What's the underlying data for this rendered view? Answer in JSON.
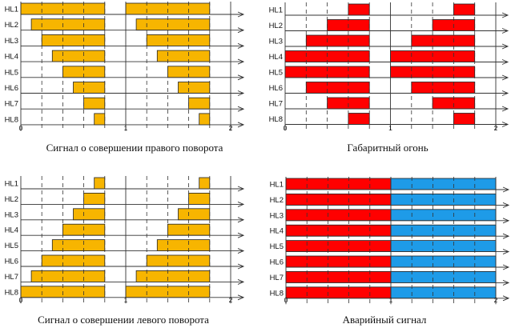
{
  "channel_labels": [
    "HL1",
    "HL2",
    "HL3",
    "HL4",
    "HL5",
    "HL6",
    "HL7",
    "HL8"
  ],
  "tick_labels": [
    "0",
    "1",
    "2"
  ],
  "colors": {
    "amber": "#F7B500",
    "red": "#FF0000",
    "blue": "#1E9BE8",
    "outline": "#222222"
  },
  "diagrams": [
    {
      "id": "right-turn",
      "caption": "Сигнал о совершении правого поворота",
      "color_key": "amber",
      "pulses": [
        [
          [
            0.0,
            0.8
          ],
          [
            1.0,
            1.8
          ]
        ],
        [
          [
            0.1,
            0.8
          ],
          [
            1.1,
            1.8
          ]
        ],
        [
          [
            0.2,
            0.8
          ],
          [
            1.2,
            1.8
          ]
        ],
        [
          [
            0.3,
            0.8
          ],
          [
            1.3,
            1.8
          ]
        ],
        [
          [
            0.4,
            0.8
          ],
          [
            1.4,
            1.8
          ]
        ],
        [
          [
            0.5,
            0.8
          ],
          [
            1.5,
            1.8
          ]
        ],
        [
          [
            0.6,
            0.8
          ],
          [
            1.6,
            1.8
          ]
        ],
        [
          [
            0.7,
            0.8
          ],
          [
            1.7,
            1.8
          ]
        ]
      ]
    },
    {
      "id": "parking-light",
      "caption": "Габаритный огонь",
      "color_key": "red",
      "pulses": [
        [
          [
            0.6,
            0.8
          ],
          [
            1.6,
            1.8
          ]
        ],
        [
          [
            0.4,
            0.8
          ],
          [
            1.4,
            1.8
          ]
        ],
        [
          [
            0.2,
            0.8
          ],
          [
            1.2,
            1.8
          ]
        ],
        [
          [
            0.0,
            0.8
          ],
          [
            1.0,
            1.8
          ]
        ],
        [
          [
            0.0,
            0.8
          ],
          [
            1.0,
            1.8
          ]
        ],
        [
          [
            0.2,
            0.8
          ],
          [
            1.2,
            1.8
          ]
        ],
        [
          [
            0.4,
            0.8
          ],
          [
            1.4,
            1.8
          ]
        ],
        [
          [
            0.6,
            0.8
          ],
          [
            1.6,
            1.8
          ]
        ]
      ]
    },
    {
      "id": "left-turn",
      "caption": "Сигнал о совершении левого поворота",
      "color_key": "amber",
      "pulses": [
        [
          [
            0.7,
            0.8
          ],
          [
            1.7,
            1.8
          ]
        ],
        [
          [
            0.6,
            0.8
          ],
          [
            1.6,
            1.8
          ]
        ],
        [
          [
            0.5,
            0.8
          ],
          [
            1.5,
            1.8
          ]
        ],
        [
          [
            0.4,
            0.8
          ],
          [
            1.4,
            1.8
          ]
        ],
        [
          [
            0.3,
            0.8
          ],
          [
            1.3,
            1.8
          ]
        ],
        [
          [
            0.2,
            0.8
          ],
          [
            1.2,
            1.8
          ]
        ],
        [
          [
            0.1,
            0.8
          ],
          [
            1.1,
            1.8
          ]
        ],
        [
          [
            0.0,
            0.8
          ],
          [
            1.0,
            1.8
          ]
        ]
      ]
    },
    {
      "id": "hazard",
      "caption": "Аварийный сигнал",
      "color_key": "red",
      "second_color_key": "blue",
      "pulses": [
        [
          [
            0.0,
            1.0,
            "red"
          ],
          [
            1.0,
            2.0,
            "blue"
          ]
        ],
        [
          [
            0.0,
            1.0,
            "red"
          ],
          [
            1.0,
            2.0,
            "blue"
          ]
        ],
        [
          [
            0.0,
            1.0,
            "red"
          ],
          [
            1.0,
            2.0,
            "blue"
          ]
        ],
        [
          [
            0.0,
            1.0,
            "red"
          ],
          [
            1.0,
            2.0,
            "blue"
          ]
        ],
        [
          [
            0.0,
            1.0,
            "red"
          ],
          [
            1.0,
            2.0,
            "blue"
          ]
        ],
        [
          [
            0.0,
            1.0,
            "red"
          ],
          [
            1.0,
            2.0,
            "blue"
          ]
        ],
        [
          [
            0.0,
            1.0,
            "red"
          ],
          [
            1.0,
            2.0,
            "blue"
          ]
        ],
        [
          [
            0.0,
            1.0,
            "red"
          ],
          [
            1.0,
            2.0,
            "blue"
          ]
        ]
      ]
    }
  ],
  "time_grid": {
    "min": 0,
    "max": 2,
    "dashed_every": 0.2
  }
}
